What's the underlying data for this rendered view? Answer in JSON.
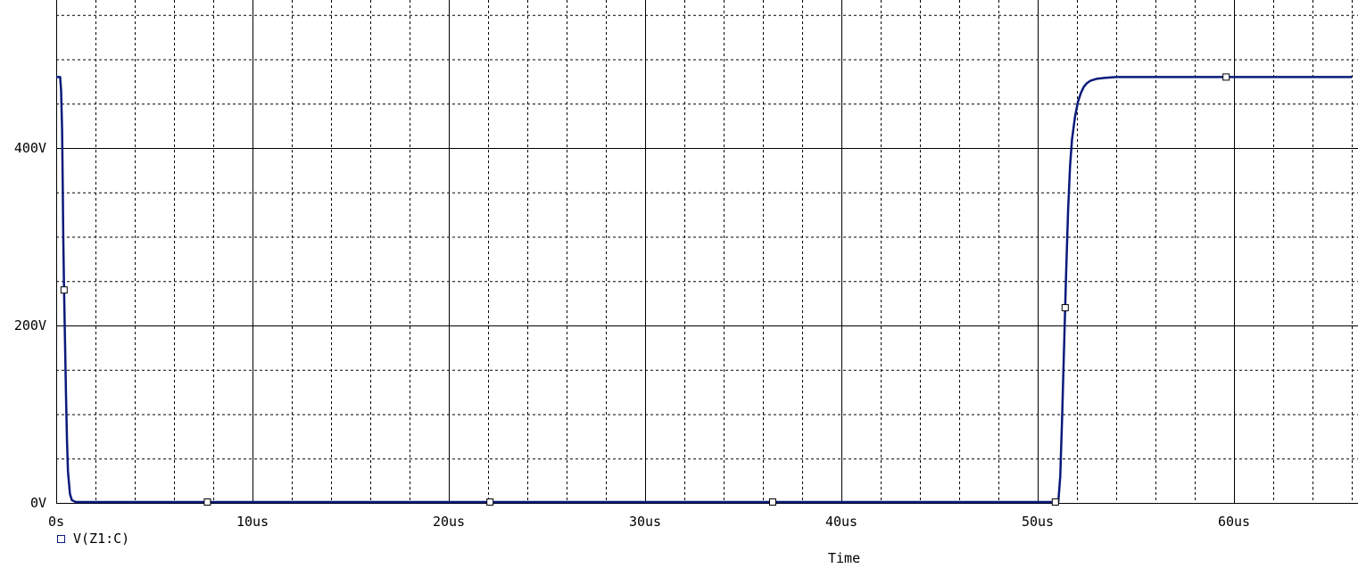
{
  "colors": {
    "trace": "#0a1a7a",
    "grid_major": "#000000",
    "grid_minor": "#000000",
    "background": "#ffffff"
  },
  "chart_data": {
    "type": "line",
    "xlabel": "Time",
    "ylabel": "",
    "x_unit": "us",
    "y_unit": "V",
    "xlim": [
      0,
      66
    ],
    "ylim": [
      0,
      550
    ],
    "x_ticks": [
      0,
      10,
      20,
      30,
      40,
      50,
      60
    ],
    "x_tick_labels": [
      "0s",
      "10us",
      "20us",
      "30us",
      "40us",
      "50us",
      "60us"
    ],
    "y_ticks": [
      0,
      200,
      400
    ],
    "y_tick_labels": [
      "0V",
      "200V",
      "400V"
    ],
    "grid": true,
    "legend_placement": "bottom-left",
    "series": [
      {
        "name": "V(Z1:C)",
        "marker": "square",
        "x": [
          0,
          0.2,
          0.25,
          0.3,
          0.33,
          0.36,
          0.4,
          0.45,
          0.5,
          0.55,
          0.6,
          0.7,
          0.8,
          1.0,
          2,
          10,
          20,
          30,
          40,
          50,
          51.05,
          51.15,
          51.25,
          51.35,
          51.45,
          51.55,
          51.65,
          51.75,
          51.9,
          52.05,
          52.2,
          52.35,
          52.5,
          52.7,
          53.0,
          53.4,
          54.0,
          56,
          60,
          66
        ],
        "y": [
          480,
          480,
          465,
          420,
          360,
          300,
          240,
          180,
          120,
          70,
          35,
          10,
          3,
          1,
          1,
          1,
          1,
          1,
          1,
          1,
          1,
          30,
          100,
          180,
          260,
          330,
          380,
          410,
          435,
          452,
          462,
          469,
          473,
          476,
          478,
          479,
          480,
          480,
          480,
          480
        ],
        "marker_x": [
          0.4,
          7.7,
          22.1,
          36.5,
          50.9,
          51.4,
          59.6
        ]
      }
    ]
  }
}
